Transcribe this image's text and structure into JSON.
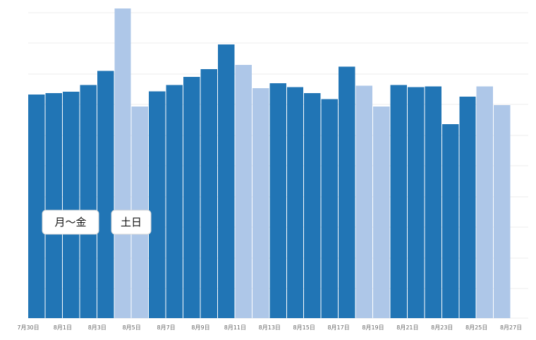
{
  "chart_data": {
    "type": "bar",
    "categories": [
      "7月30日",
      "7月31日",
      "8月1日",
      "8月2日",
      "8月3日",
      "8月4日",
      "8月5日",
      "8月6日",
      "8月7日",
      "8月8日",
      "8月9日",
      "8月10日",
      "8月11日",
      "8月12日",
      "8月13日",
      "8月14日",
      "8月15日",
      "8月16日",
      "8月17日",
      "8月18日",
      "8月19日",
      "8月20日",
      "8月21日",
      "8月22日",
      "8月23日",
      "8月24日",
      "8月25日",
      "8月26日",
      "8月27日"
    ],
    "x_tick_labels": [
      "7月30日",
      "8月1日",
      "8月3日",
      "8月5日",
      "8月7日",
      "8月9日",
      "8月11日",
      "8月13日",
      "8月15日",
      "8月17日",
      "8月19日",
      "8月21日",
      "8月23日",
      "8月25日",
      "8月27日"
    ],
    "values": [
      72.5,
      73.0,
      73.4,
      75.6,
      80.2,
      100.5,
      68.6,
      73.6,
      75.6,
      78.3,
      80.8,
      88.8,
      82.1,
      74.6,
      76.2,
      75.0,
      73.0,
      71.1,
      81.6,
      75.4,
      68.6,
      75.6,
      75.0,
      75.2,
      62.9,
      71.9,
      75.2,
      69.1,
      0
    ],
    "day_type": [
      "weekday",
      "weekday",
      "weekday",
      "weekday",
      "weekday",
      "weekend",
      "weekend",
      "weekday",
      "weekday",
      "weekday",
      "weekday",
      "weekday",
      "weekend",
      "weekend",
      "weekday",
      "weekday",
      "weekday",
      "weekday",
      "weekday",
      "weekend",
      "weekend",
      "weekday",
      "weekday",
      "weekday",
      "weekday",
      "weekday",
      "weekend",
      "weekend",
      "weekday"
    ],
    "legend": [
      {
        "label": "月～金",
        "color": "#2175b5"
      },
      {
        "label": "土日",
        "color": "#aec7e8"
      }
    ],
    "ylim": [
      0,
      100
    ],
    "grid": true
  }
}
